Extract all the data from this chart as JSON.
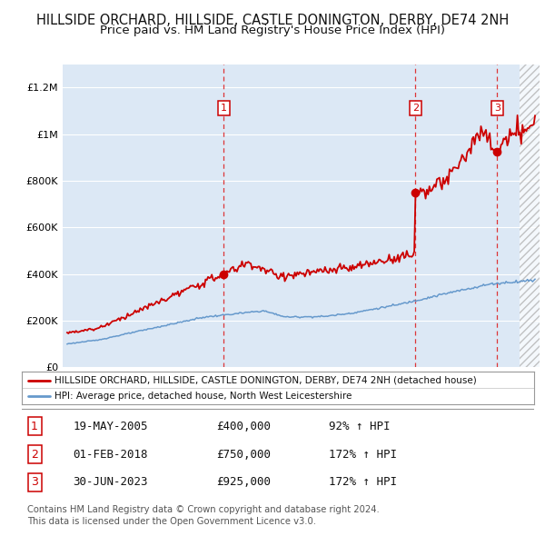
{
  "title": "HILLSIDE ORCHARD, HILLSIDE, CASTLE DONINGTON, DERBY, DE74 2NH",
  "subtitle": "Price paid vs. HM Land Registry's House Price Index (HPI)",
  "title_fontsize": 10.5,
  "subtitle_fontsize": 9.5,
  "background_color": "#ffffff",
  "plot_bg_color": "#dce8f5",
  "grid_color": "#ffffff",
  "red_line_color": "#cc0000",
  "blue_line_color": "#6699cc",
  "vline_color": "#dd2222",
  "marker_color": "#cc0000",
  "ylim": [
    0,
    1300000
  ],
  "yticks": [
    0,
    200000,
    400000,
    600000,
    800000,
    1000000,
    1200000
  ],
  "ytick_labels": [
    "£0",
    "£200K",
    "£400K",
    "£600K",
    "£800K",
    "£1M",
    "£1.2M"
  ],
  "xlim_start": 1994.7,
  "xlim_end": 2026.3,
  "hatch_start": 2025.0,
  "transactions": [
    {
      "num": 1,
      "year": 2005.38,
      "price": 400000,
      "date": "19-MAY-2005",
      "hpi_pct": "92%"
    },
    {
      "num": 2,
      "year": 2018.08,
      "price": 750000,
      "date": "01-FEB-2018",
      "hpi_pct": "172%"
    },
    {
      "num": 3,
      "year": 2023.49,
      "price": 925000,
      "date": "30-JUN-2023",
      "hpi_pct": "172%"
    }
  ],
  "legend_entries": [
    "HILLSIDE ORCHARD, HILLSIDE, CASTLE DONINGTON, DERBY, DE74 2NH (detached house)",
    "HPI: Average price, detached house, North West Leicestershire"
  ],
  "footer_lines": [
    "Contains HM Land Registry data © Crown copyright and database right 2024.",
    "This data is licensed under the Open Government Licence v3.0."
  ],
  "table_rows": [
    [
      "1",
      "19-MAY-2005",
      "£400,000",
      "92% ↑ HPI"
    ],
    [
      "2",
      "01-FEB-2018",
      "£750,000",
      "172% ↑ HPI"
    ],
    [
      "3",
      "30-JUN-2023",
      "£925,000",
      "172% ↑ HPI"
    ]
  ]
}
